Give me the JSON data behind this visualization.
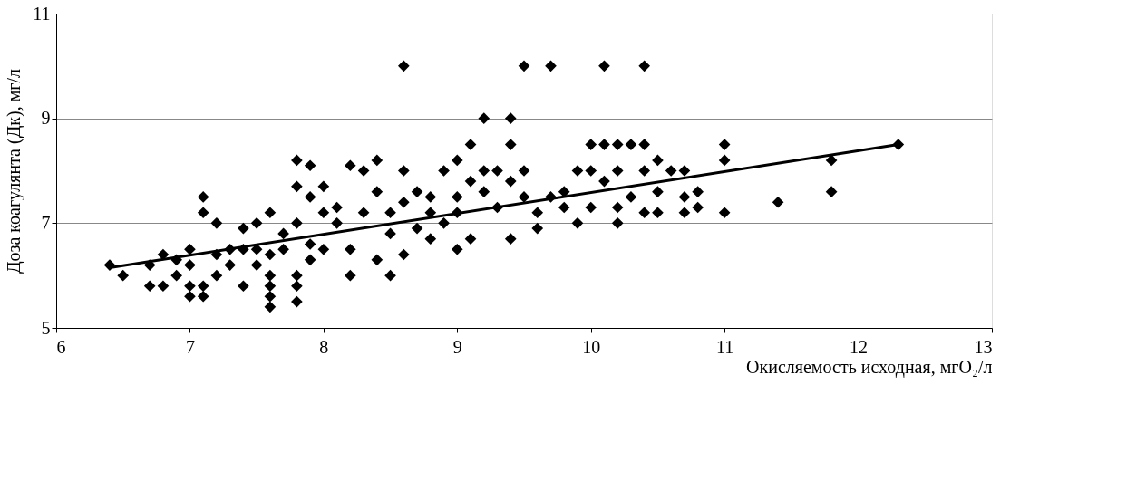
{
  "chart_data": {
    "type": "scatter",
    "xlabel": "Окисляемость исходная, мгO₂/л",
    "ylabel": "Доза коагулянта (Дк), мг/л",
    "xlim": [
      6,
      13
    ],
    "xticks": [
      6,
      7,
      8,
      9,
      10,
      11,
      12,
      13
    ],
    "ylim": [
      5,
      11
    ],
    "yticks": [
      5,
      7,
      9,
      11
    ],
    "grid": "y",
    "series": [
      {
        "marker": "diamond",
        "color": "#000000",
        "x": [
          8.6,
          9.5,
          9.7,
          10.1,
          10.4,
          9.2,
          9.4,
          9.4,
          9.1,
          10.0,
          10.1,
          10.2,
          10.3,
          10.4,
          11.0,
          11.0,
          12.3,
          11.8,
          11.8,
          11.4,
          11.0,
          10.8,
          6.4,
          6.5,
          6.7,
          6.7,
          6.8,
          6.8,
          6.9,
          6.9,
          7.0,
          7.0,
          7.0,
          7.0,
          7.1,
          7.1,
          7.1,
          7.1,
          7.2,
          7.2,
          7.2,
          7.3,
          7.3,
          7.4,
          7.4,
          7.4,
          7.5,
          7.5,
          7.5,
          7.6,
          7.6,
          7.6,
          7.6,
          7.6,
          7.6,
          7.7,
          7.7,
          7.8,
          7.8,
          7.8,
          7.8,
          7.8,
          7.8,
          7.9,
          7.9,
          7.9,
          8.0,
          8.0,
          8.1,
          8.1,
          8.2,
          8.2,
          8.2,
          8.3,
          8.3,
          8.4,
          8.4,
          8.4,
          8.5,
          8.5,
          8.5,
          8.6,
          8.6,
          8.6,
          8.7,
          8.7,
          8.8,
          8.8,
          8.9,
          8.9,
          9.0,
          9.0,
          9.0,
          9.1,
          9.1,
          9.2,
          9.2,
          9.3,
          9.3,
          9.4,
          9.4,
          9.5,
          9.5,
          9.6,
          9.6,
          9.7,
          9.8,
          9.9,
          9.9,
          10.0,
          10.0,
          10.1,
          10.2,
          10.2,
          10.3,
          10.4,
          10.4,
          10.5,
          10.5,
          10.5,
          10.6,
          10.7,
          10.7,
          10.7,
          10.8,
          10.2,
          9.8,
          9.0,
          8.8,
          8.0,
          7.9
        ],
        "values": [
          10,
          10,
          10,
          10,
          10,
          9,
          9,
          8.5,
          8.5,
          8.5,
          8.5,
          8.5,
          8.5,
          8.5,
          8.5,
          8.2,
          8.5,
          8.2,
          7.6,
          7.4,
          7.2,
          7.3,
          6.2,
          6.0,
          6.2,
          5.8,
          6.4,
          5.8,
          6.3,
          6.0,
          6.5,
          6.2,
          5.8,
          5.6,
          7.5,
          7.2,
          5.8,
          5.6,
          7.0,
          6.0,
          6.4,
          6.5,
          6.2,
          5.8,
          6.9,
          6.5,
          7.0,
          6.5,
          6.2,
          5.4,
          5.6,
          5.8,
          6.0,
          6.4,
          7.2,
          6.8,
          6.5,
          5.5,
          5.8,
          6.0,
          8.2,
          7.7,
          7.0,
          8.1,
          7.5,
          6.6,
          7.7,
          6.5,
          7.0,
          7.3,
          8.1,
          6.0,
          6.5,
          8.0,
          7.2,
          8.2,
          7.6,
          6.3,
          6.0,
          7.2,
          6.8,
          8.0,
          7.4,
          6.4,
          7.6,
          6.9,
          7.2,
          6.7,
          8.0,
          7.0,
          8.2,
          6.5,
          7.5,
          7.8,
          6.7,
          8.0,
          7.6,
          8.0,
          7.3,
          6.7,
          7.8,
          7.5,
          8.0,
          7.2,
          6.9,
          7.5,
          7.6,
          7.0,
          8.0,
          8.0,
          7.3,
          7.8,
          7.0,
          8.0,
          7.5,
          7.2,
          8.0,
          8.2,
          7.6,
          7.2,
          8.0,
          7.2,
          7.5,
          8.0,
          7.6,
          7.3,
          7.3,
          7.2,
          7.5,
          7.2,
          6.3
        ]
      },
      {
        "type": "line",
        "color": "#000000",
        "x": [
          6.4,
          12.3
        ],
        "values": [
          6.15,
          8.5
        ]
      }
    ]
  }
}
